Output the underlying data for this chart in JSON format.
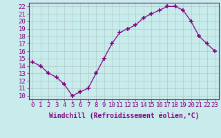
{
  "x": [
    0,
    1,
    2,
    3,
    4,
    5,
    6,
    7,
    8,
    9,
    10,
    11,
    12,
    13,
    14,
    15,
    16,
    17,
    18,
    19,
    20,
    21,
    22,
    23
  ],
  "y": [
    14.5,
    14.0,
    13.0,
    12.5,
    11.5,
    10.0,
    10.5,
    11.0,
    13.0,
    15.0,
    17.0,
    18.5,
    19.0,
    19.5,
    20.5,
    21.0,
    21.5,
    22.0,
    22.0,
    21.5,
    20.0,
    18.0,
    17.0,
    16.0
  ],
  "line_color": "#800080",
  "marker": "+",
  "marker_size": 5,
  "bg_color": "#c8ecec",
  "grid_color": "#b0c8c8",
  "xlabel": "Windchill (Refroidissement éolien,°C)",
  "xlabel_fontsize": 7,
  "tick_fontsize": 6.5,
  "ylim": [
    9.5,
    22.5
  ],
  "xlim": [
    -0.5,
    23.5
  ],
  "yticks": [
    10,
    11,
    12,
    13,
    14,
    15,
    16,
    17,
    18,
    19,
    20,
    21,
    22
  ],
  "xticks": [
    0,
    1,
    2,
    3,
    4,
    5,
    6,
    7,
    8,
    9,
    10,
    11,
    12,
    13,
    14,
    15,
    16,
    17,
    18,
    19,
    20,
    21,
    22,
    23
  ]
}
